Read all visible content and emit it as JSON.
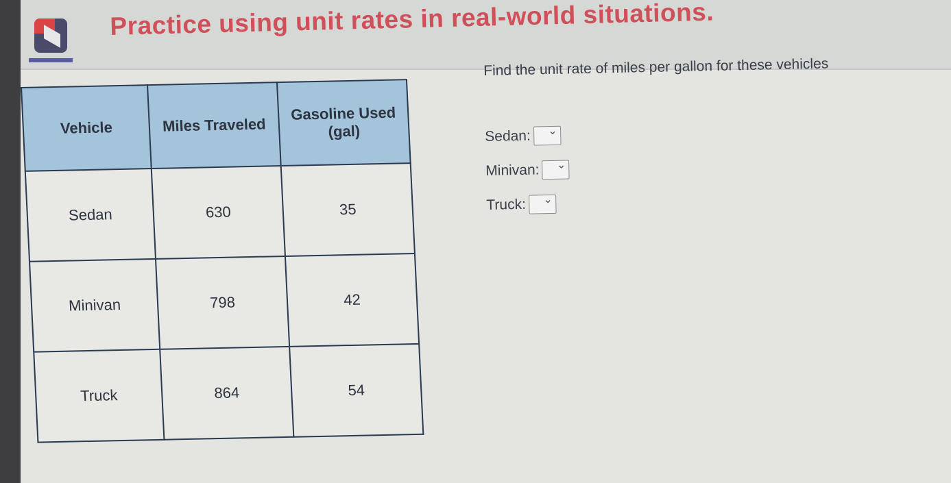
{
  "header": {
    "title": "Practice using unit rates in real-world situations."
  },
  "table": {
    "headers": [
      "Vehicle",
      "Miles Traveled",
      "Gasoline Used (gal)"
    ],
    "rows": [
      [
        "Sedan",
        "630",
        "35"
      ],
      [
        "Minivan",
        "798",
        "42"
      ],
      [
        "Truck",
        "864",
        "54"
      ]
    ]
  },
  "question": {
    "prompt": "Find the unit rate of miles per gallon for these vehicles",
    "fields": [
      {
        "label": "Sedan:",
        "value": ""
      },
      {
        "label": "Minivan:",
        "value": ""
      },
      {
        "label": "Truck:",
        "value": ""
      }
    ]
  }
}
